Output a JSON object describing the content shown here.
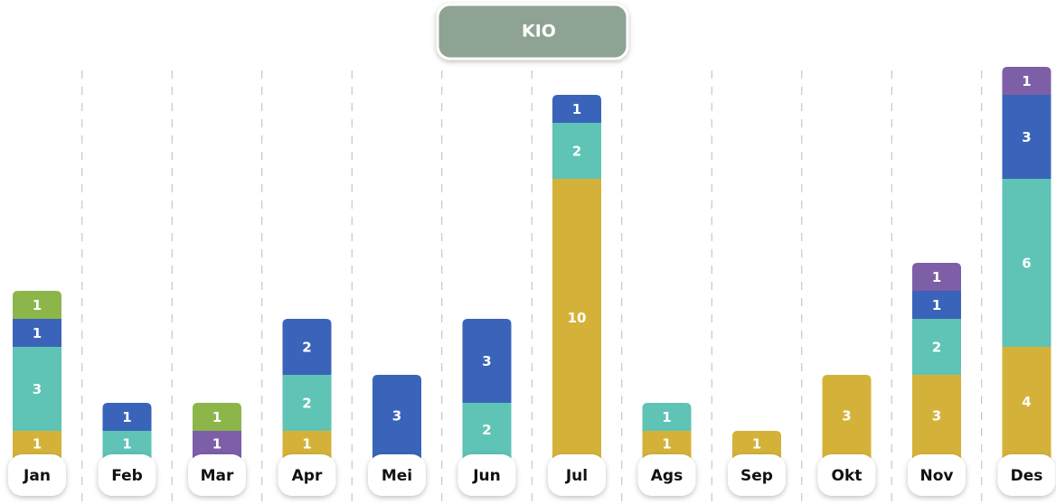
{
  "chart_data": {
    "type": "stacked-bar",
    "title": "KIO",
    "categories": [
      "Jan",
      "Feb",
      "Mar",
      "Apr",
      "Mei",
      "Jun",
      "Jul",
      "Ags",
      "Sep",
      "Okt",
      "Nov",
      "Des"
    ],
    "series": [
      {
        "color": "#d4b23a",
        "values": [
          1,
          0,
          0,
          1,
          0,
          0,
          10,
          1,
          1,
          3,
          3,
          4
        ]
      },
      {
        "color": "#5fc3b5",
        "values": [
          3,
          1,
          0,
          2,
          0,
          2,
          2,
          1,
          0,
          0,
          2,
          6
        ]
      },
      {
        "color": "#3a64b9",
        "values": [
          1,
          1,
          0,
          2,
          3,
          3,
          1,
          0,
          0,
          0,
          1,
          3
        ]
      },
      {
        "color": "#7d5fa8",
        "values": [
          0,
          0,
          1,
          0,
          0,
          0,
          0,
          0,
          0,
          0,
          1,
          1
        ]
      },
      {
        "color": "#8db64a",
        "values": [
          1,
          0,
          1,
          0,
          0,
          0,
          0,
          0,
          0,
          0,
          0,
          0
        ]
      }
    ]
  }
}
